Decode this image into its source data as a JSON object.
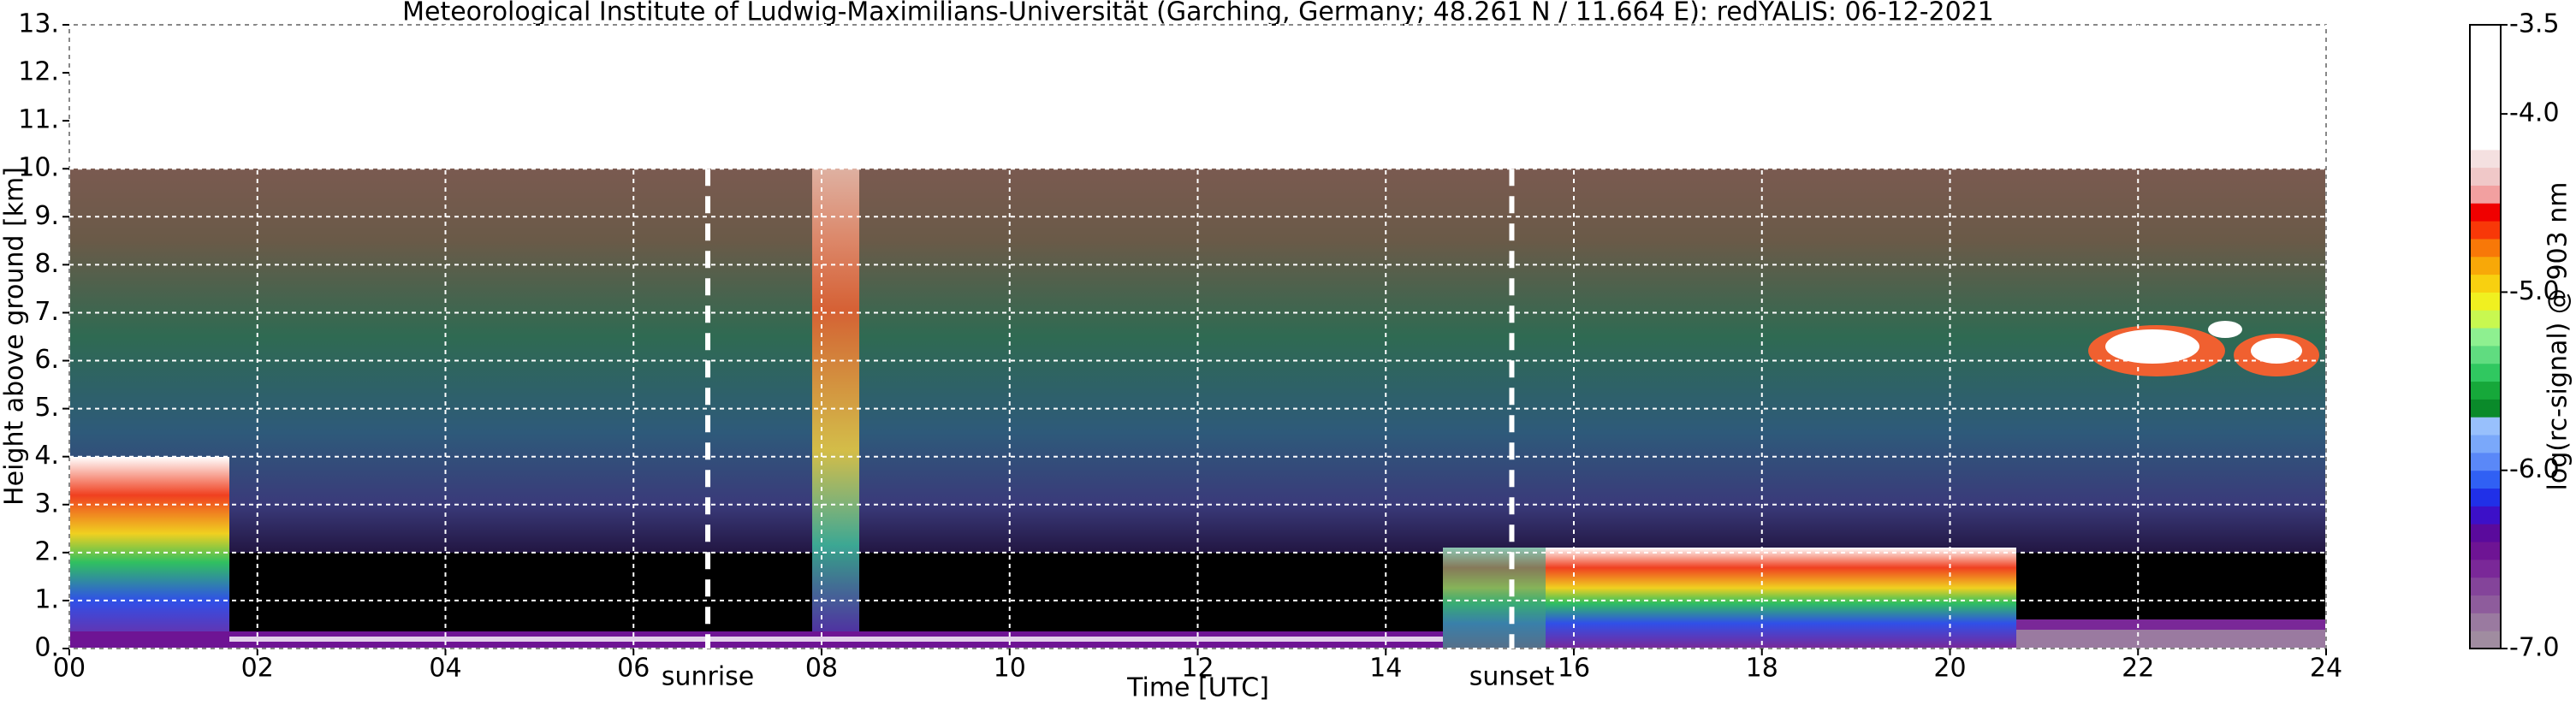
{
  "chart_data": {
    "type": "heatmap",
    "title": "Meteorological Institute of Ludwig-Maximilians-Universität (Garching, Germany; 48.261 N / 11.664 E):    redYALIS: 06-12-2021",
    "xlabel": "Time [UTC]",
    "ylabel": "Height above ground [km]",
    "xlim": [
      0,
      24
    ],
    "xticks": [
      {
        "value": 0,
        "label": "00"
      },
      {
        "value": 2,
        "label": "02"
      },
      {
        "value": 4,
        "label": "04"
      },
      {
        "value": 6,
        "label": "06"
      },
      {
        "value": 8,
        "label": "08"
      },
      10,
      12,
      14,
      16,
      18,
      20,
      22,
      24
    ],
    "ylim": [
      0,
      13
    ],
    "yticks": [
      {
        "value": 0,
        "label": "0."
      },
      {
        "value": 1,
        "label": "1."
      },
      {
        "value": 2,
        "label": "2."
      },
      {
        "value": 3,
        "label": "3."
      },
      {
        "value": 4,
        "label": "4."
      },
      {
        "value": 5,
        "label": "5."
      },
      {
        "value": 6,
        "label": "6."
      },
      {
        "value": 7,
        "label": "7."
      },
      {
        "value": 8,
        "label": "8."
      },
      {
        "value": 9,
        "label": "9."
      },
      {
        "value": 10,
        "label": "10."
      },
      {
        "value": 11,
        "label": "11."
      },
      {
        "value": 12,
        "label": "12."
      },
      {
        "value": 13,
        "label": "13."
      }
    ],
    "grid": true,
    "annotations": [
      {
        "text": "sunrise",
        "x": 6.79
      },
      {
        "text": "sunset",
        "x": 15.34
      }
    ],
    "colorbar": {
      "label": "log(rc-signal) @ 903 nm",
      "lim": [
        -7,
        -3.5
      ],
      "ticks": [
        {
          "value": -3.5,
          "label": "-3.5"
        },
        {
          "value": -4,
          "label": "-4.0"
        },
        {
          "value": -5,
          "label": "-5.0"
        },
        {
          "value": -6,
          "label": "-6.0"
        },
        {
          "value": -7,
          "label": "-7.0"
        }
      ],
      "colors": [
        "#a08ca0",
        "#9a7aa0",
        "#8e5c9c",
        "#84449a",
        "#7a2898",
        "#6e1494",
        "#5a0a9c",
        "#3c10c8",
        "#2030e8",
        "#3060f4",
        "#5a88f8",
        "#7aa8fa",
        "#98c0fc",
        "#0a8a2a",
        "#16a83a",
        "#30c860",
        "#60dc80",
        "#8ef090",
        "#c8f850",
        "#f0f020",
        "#f8d010",
        "#f8a808",
        "#f87808",
        "#f83808",
        "#f00000",
        "#f2a0a0",
        "#f0c8c8",
        "#f4e0e0",
        "#ffffff",
        "#ffffff",
        "#ffffff",
        "#ffffff",
        "#ffffff",
        "#ffffff",
        "#ffffff"
      ]
    }
  }
}
